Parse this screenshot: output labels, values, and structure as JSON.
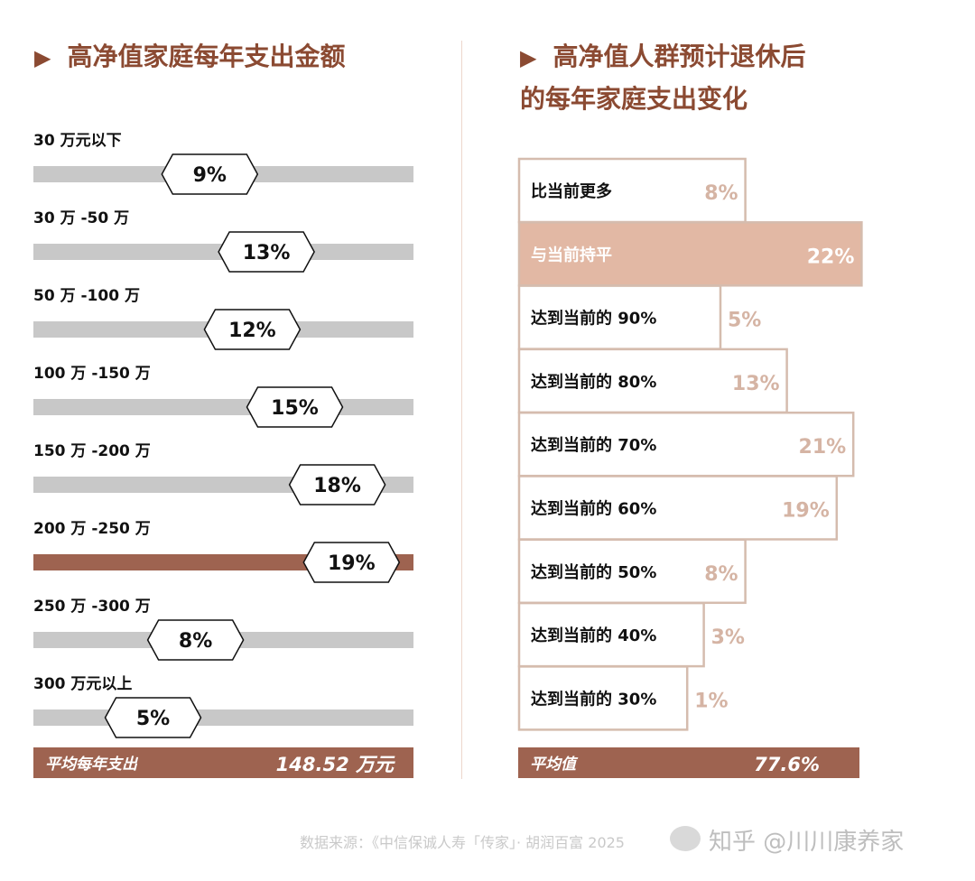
{
  "chart_data": [
    {
      "type": "bar",
      "title": "高净值家庭每年支出金额",
      "categories": [
        "30 万元以下",
        "30 万 -50 万",
        "50 万 -100 万",
        "100 万 -150 万",
        "150 万 -200 万",
        "200 万 -250 万",
        "250 万 -300 万",
        "300 万元以上"
      ],
      "values": [
        9,
        13,
        12,
        15,
        18,
        19,
        8,
        5
      ],
      "value_labels": [
        "9%",
        "13%",
        "12%",
        "15%",
        "18%",
        "19%",
        "8%",
        "5%"
      ],
      "highlight_index": 5,
      "summary": {
        "label": "平均每年支出",
        "value": "148.52 万元"
      }
    },
    {
      "type": "bar",
      "title_lines": [
        "高净值人群预计退休后",
        "的每年家庭支出变化"
      ],
      "categories": [
        "比当前更多",
        "与当前持平",
        "达到当前的 90%",
        "达到当前的 80%",
        "达到当前的 70%",
        "达到当前的 60%",
        "达到当前的 50%",
        "达到当前的 40%",
        "达到当前的 30%"
      ],
      "values": [
        8,
        22,
        5,
        13,
        21,
        19,
        8,
        3,
        1
      ],
      "value_labels": [
        "8%",
        "22%",
        "5%",
        "13%",
        "21%",
        "19%",
        "8%",
        "3%",
        "1%"
      ],
      "highlight_index": 1,
      "summary": {
        "label": "平均值",
        "value": "77.6%"
      }
    }
  ],
  "colors": {
    "accent": "#9e6350",
    "title": "#8b4a32",
    "track": "#c8c8c8",
    "highlight_light": "#e2b8a4",
    "box_border": "#d5bcae",
    "value_text": "#d5b4a4"
  },
  "footer": {
    "source": "数据来源：《中信保诚人寿「传家」· 胡润百富 2025",
    "watermark": "知乎 @川川康养家"
  }
}
